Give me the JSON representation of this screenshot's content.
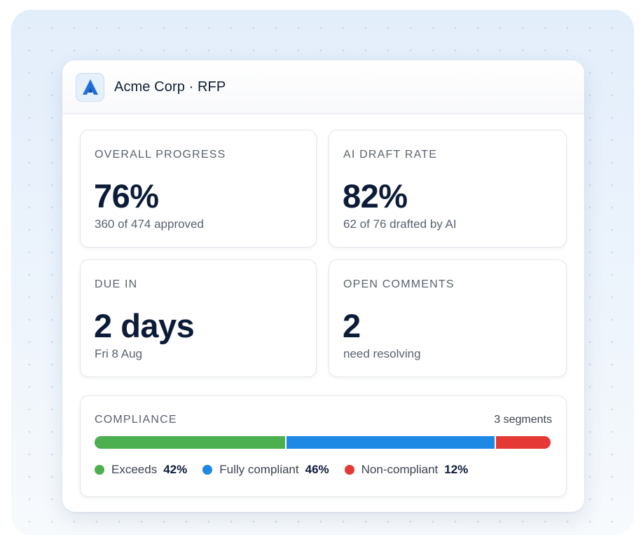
{
  "header": {
    "title": "Acme Corp · RFP",
    "logo_icon": "acme-logo-icon"
  },
  "tiles": [
    {
      "label": "OVERALL PROGRESS",
      "value": "76%",
      "sub": "360 of 474 approved"
    },
    {
      "label": "AI DRAFT RATE",
      "value": "82%",
      "sub": "62 of 76 drafted by AI"
    },
    {
      "label": "DUE IN",
      "value": "2 days",
      "sub": "Fri 8 Aug"
    },
    {
      "label": "OPEN COMMENTS",
      "value": "2",
      "sub": "need resolving"
    }
  ],
  "compliance": {
    "label": "COMPLIANCE",
    "count": "3 segments",
    "segments": [
      {
        "name": "Exceeds",
        "percent_label": "42%",
        "percent": 42,
        "color": "#4caf50"
      },
      {
        "name": "Fully compliant",
        "percent_label": "46%",
        "percent": 46,
        "color": "#1e88e5"
      },
      {
        "name": "Non-compliant",
        "percent_label": "12%",
        "percent": 12,
        "color": "#e53935"
      }
    ]
  }
}
